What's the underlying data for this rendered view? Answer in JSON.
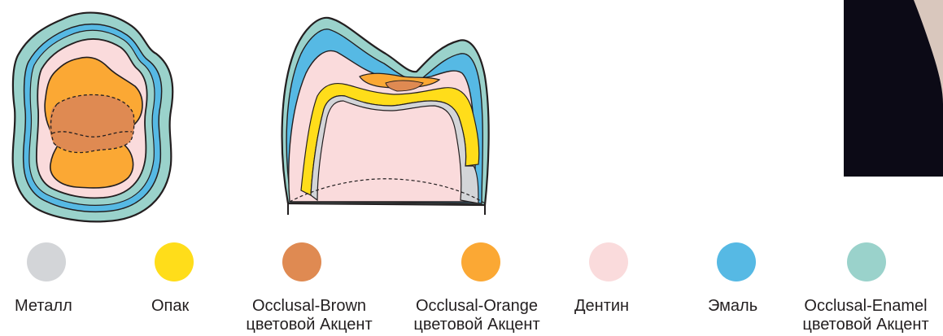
{
  "legend": [
    {
      "line1": "Металл",
      "line2": "",
      "color": "#d3d5d8"
    },
    {
      "line1": "Опак",
      "line2": "",
      "color": "#ffdd1a"
    },
    {
      "line1": "Occlusal-Brown",
      "line2": "цветовой Акцент",
      "color": "#df8a52"
    },
    {
      "line1": "Occlusal-Orange",
      "line2": "цветовой Акцент",
      "color": "#fba834"
    },
    {
      "line1": "Дентин",
      "line2": "",
      "color": "#fadbdc"
    },
    {
      "line1": "Эмаль",
      "line2": "",
      "color": "#56b9e4"
    },
    {
      "line1": "Occlusal-Enamel",
      "line2": "цветовой Акцент",
      "color": "#9ad2cb"
    }
  ],
  "colors": {
    "outline": "#231f20",
    "photo_background": "#0c0a16",
    "photo_skin": "#d9c7bd"
  }
}
